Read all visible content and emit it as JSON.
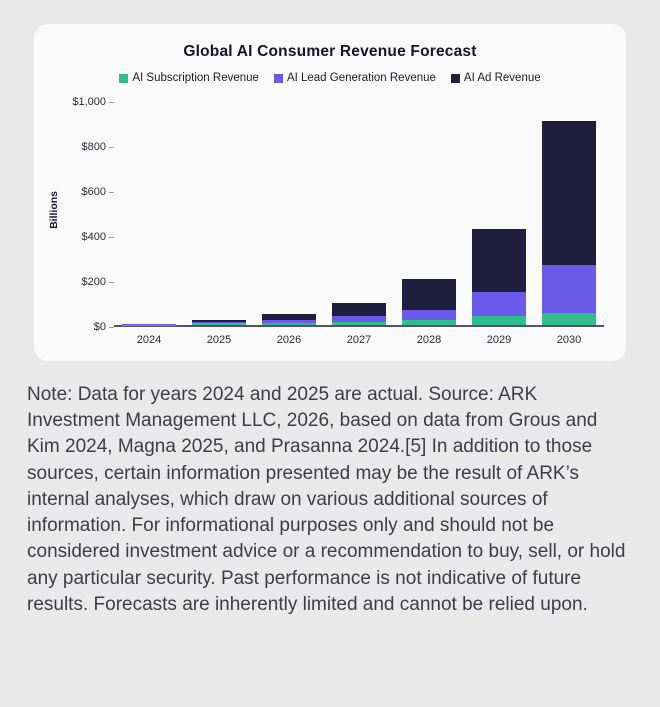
{
  "colors": {
    "page_background": "#e9e9e9",
    "card_background": "#fafafa",
    "axis_line": "#57525f",
    "note_text": "#3d3d48"
  },
  "chart_data": {
    "type": "bar",
    "stacked": true,
    "title": "Global AI Consumer Revenue Forecast",
    "xlabel": "",
    "ylabel": "Billions",
    "categories": [
      "2024",
      "2025",
      "2026",
      "2027",
      "2028",
      "2029",
      "2030"
    ],
    "series": [
      {
        "name": "AI Subscription Revenue",
        "color": "#2fbd8d",
        "values": [
          2,
          7,
          10,
          13,
          22,
          40,
          55
        ]
      },
      {
        "name": "AI Lead Generation Revenue",
        "color": "#6b5aea",
        "values": [
          1,
          5,
          13,
          27,
          45,
          105,
          210
        ]
      },
      {
        "name": "AI Ad Revenue",
        "color": "#211d3d",
        "values": [
          2,
          10,
          25,
          58,
          138,
          280,
          640
        ]
      }
    ],
    "totals": [
      5,
      22,
      48,
      98,
      205,
      425,
      905
    ],
    "ylim": [
      0,
      1000
    ],
    "yticks": [
      0,
      200,
      400,
      600,
      800,
      1000
    ],
    "ytick_labels": [
      "$0",
      "$200",
      "$400",
      "$600",
      "$800",
      "$1,000"
    ],
    "legend_position": "top",
    "grid": false
  },
  "note": {
    "text": "Note: Data for years 2024 and 2025 are actual. Source: ARK Investment Management LLC, 2026, based on data from Grous and Kim 2024, Magna 2025, and Prasanna 2024.[5] In addition to those sources, certain information presented may be the result of ARK’s internal analyses, which draw on various additional sources of information. For informational purposes only and should not be considered investment advice or a recommendation to buy, sell, or hold any particular security. Past performance is not indicative of future results. Forecasts are inherently limited and cannot be relied upon."
  }
}
